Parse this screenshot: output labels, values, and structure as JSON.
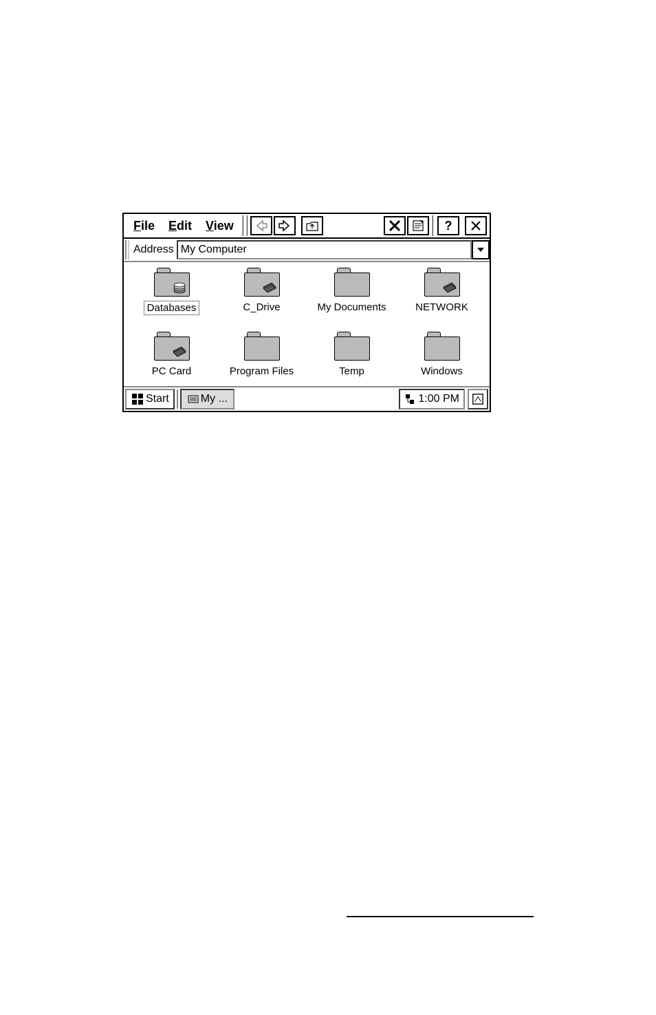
{
  "menubar": {
    "file": "File",
    "edit": "Edit",
    "view": "View"
  },
  "toolbar": {
    "help": "?",
    "close": "×"
  },
  "addressbar": {
    "label": "Address",
    "value": "My Computer"
  },
  "folders": [
    {
      "label": "Databases",
      "selected": true,
      "overlay": "stack"
    },
    {
      "label": "C_Drive",
      "selected": false,
      "overlay": "card"
    },
    {
      "label": "My Documents",
      "selected": false,
      "overlay": "none"
    },
    {
      "label": "NETWORK",
      "selected": false,
      "overlay": "card"
    },
    {
      "label": "PC Card",
      "selected": false,
      "overlay": "card"
    },
    {
      "label": "Program Files",
      "selected": false,
      "overlay": "none"
    },
    {
      "label": "Temp",
      "selected": false,
      "overlay": "none"
    },
    {
      "label": "Windows",
      "selected": false,
      "overlay": "none"
    }
  ],
  "taskbar": {
    "start": "Start",
    "task": "My ...",
    "time": "1:00 PM"
  },
  "colors": {
    "folder_fill": "#bbbbbb",
    "border": "#000000",
    "bg": "#ffffff",
    "inset": "#888888"
  }
}
